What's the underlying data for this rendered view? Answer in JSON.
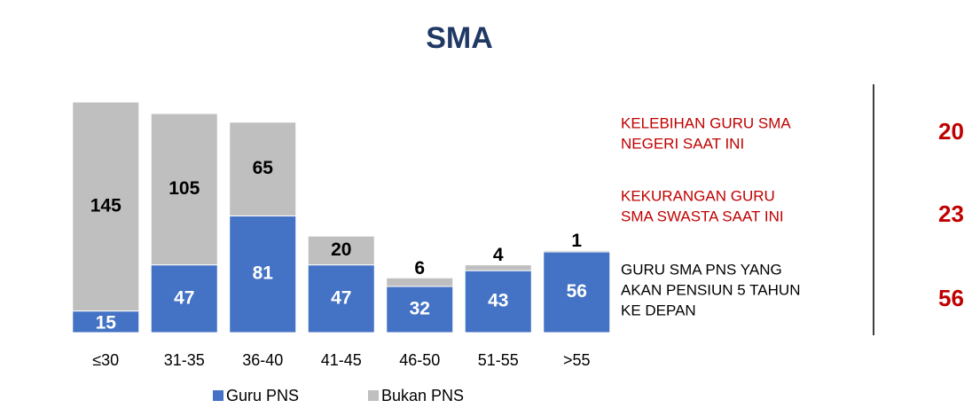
{
  "chart_data": {
    "type": "stacked_bar",
    "title": "SMA",
    "categories": [
      "≤30",
      "31-35",
      "36-40",
      "41-45",
      "46-50",
      "51-55",
      ">55"
    ],
    "series": [
      {
        "name": "Guru PNS",
        "color": "#4472c4",
        "values": [
          15,
          47,
          81,
          47,
          32,
          43,
          56
        ]
      },
      {
        "name": "Bukan PNS",
        "color": "#bfbfbf",
        "values": [
          145,
          105,
          65,
          20,
          6,
          4,
          1
        ]
      }
    ],
    "ylim": [
      0,
      160
    ],
    "legend": "bottom"
  },
  "side_notes": [
    {
      "lines": [
        "KELEBIHAN GURU SMA",
        "NEGERI SAAT INI"
      ],
      "color": "#c00000",
      "value": "20"
    },
    {
      "lines": [
        "KEKURANGAN GURU",
        "SMA SWASTA SAAT INI"
      ],
      "color": "#c00000",
      "value": "23"
    },
    {
      "lines": [
        "GURU SMA PNS YANG",
        "AKAN PENSIUN 5 TAHUN",
        "KE DEPAN"
      ],
      "color": "#000000",
      "value": "56"
    }
  ]
}
